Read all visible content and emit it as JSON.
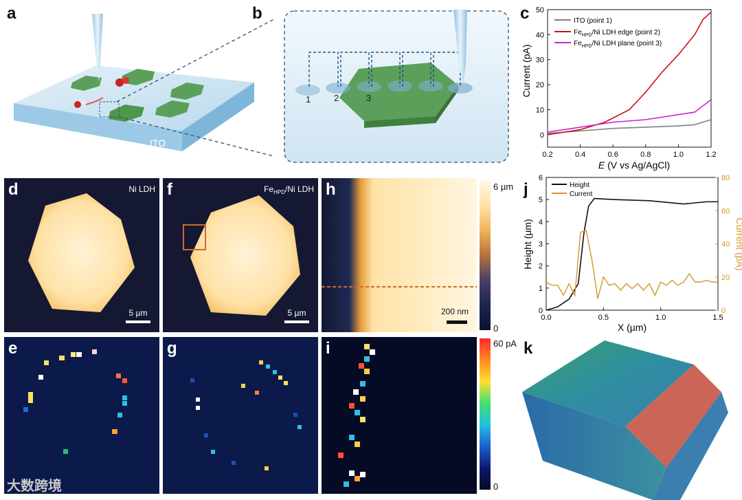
{
  "panels": {
    "a": "a",
    "b": "b",
    "c": "c",
    "d": "d",
    "e": "e",
    "f": "f",
    "g": "g",
    "h": "h",
    "i": "i",
    "j": "j",
    "k": "k"
  },
  "schematic_a": {
    "substrate_label": "ITO"
  },
  "schematic_b": {
    "points": [
      "1",
      "2",
      "3"
    ]
  },
  "afm_labels": {
    "d": "Ni LDH",
    "f_prefix": "Fe",
    "f_sub": "HPD",
    "f_suffix": "/Ni LDH"
  },
  "scale_bars": {
    "d": "5 µm",
    "f": "5 µm",
    "h": "200 nm"
  },
  "colorbar_height": {
    "top": "6 µm",
    "bottom": "0"
  },
  "colorbar_current": {
    "top": "60 pA",
    "bottom": "0"
  },
  "watermark": "大数跨境",
  "colors": {
    "ito": "#808080",
    "edge": "#cc1111",
    "plane": "#cc22cc",
    "height": "#111111",
    "current": "#d4962a",
    "hex": "#5aa05a"
  },
  "chart_data": [
    {
      "id": "c",
      "type": "line",
      "xlabel_italic": "E",
      "xlabel_rest": " (V vs Ag/AgCl)",
      "ylabel": "Current (pA)",
      "xlim": [
        0.2,
        1.2
      ],
      "ylim": [
        -5,
        50
      ],
      "xticks": [
        "0.2",
        "0.4",
        "0.6",
        "0.8",
        "1.0",
        "1.2"
      ],
      "yticks": [
        "0",
        "10",
        "20",
        "30",
        "40",
        "50"
      ],
      "legend": [
        {
          "prefix": "ITO (point 1)",
          "sub": "",
          "suffix": ""
        },
        {
          "prefix": "Fe",
          "sub": "HPD",
          "suffix": "/Ni LDH edge (point 2)"
        },
        {
          "prefix": "Fe",
          "sub": "HPD",
          "suffix": "/Ni LDH plane (point 3)"
        }
      ],
      "series": [
        {
          "name": "ITO (point 1)",
          "x": [
            0.2,
            0.4,
            0.6,
            0.8,
            1.0,
            1.1,
            1.2
          ],
          "y": [
            0.5,
            1.5,
            2.5,
            3,
            3.5,
            4,
            6
          ]
        },
        {
          "name": "FeHPD/Ni LDH edge (point 2)",
          "x": [
            0.2,
            0.4,
            0.55,
            0.7,
            0.8,
            0.9,
            1.0,
            1.1,
            1.15,
            1.2
          ],
          "y": [
            0,
            2,
            5,
            10,
            17,
            25,
            32,
            40,
            46,
            49
          ]
        },
        {
          "name": "FeHPD/Ni LDH plane (point 3)",
          "x": [
            0.2,
            0.4,
            0.6,
            0.8,
            1.0,
            1.1,
            1.2
          ],
          "y": [
            1,
            3,
            5,
            6,
            8,
            9,
            14
          ]
        }
      ]
    },
    {
      "id": "j",
      "type": "line",
      "xlabel": "X (µm)",
      "ylabel_left": "Height (µm)",
      "ylabel_right": "Current (pA)",
      "xlim": [
        0,
        1.5
      ],
      "ylim_left": [
        0,
        6
      ],
      "ylim_right": [
        0,
        80
      ],
      "xticks": [
        "0.0",
        "0.5",
        "1.0",
        "1.5"
      ],
      "yticks_left": [
        "0",
        "1",
        "2",
        "3",
        "4",
        "5",
        "6"
      ],
      "yticks_right": [
        "0",
        "20",
        "40",
        "60",
        "80"
      ],
      "legend": [
        "Height",
        "Current"
      ],
      "series": [
        {
          "name": "Height",
          "axis": "left",
          "x": [
            0,
            0.1,
            0.2,
            0.28,
            0.33,
            0.37,
            0.42,
            0.6,
            0.9,
            1.2,
            1.3,
            1.4,
            1.5
          ],
          "y": [
            0,
            0.15,
            0.5,
            1.2,
            3.5,
            4.7,
            5.05,
            5.0,
            4.95,
            4.8,
            4.85,
            4.9,
            4.9
          ]
        },
        {
          "name": "Current",
          "axis": "left_right",
          "x": [
            0,
            0.05,
            0.1,
            0.15,
            0.2,
            0.25,
            0.3,
            0.35,
            0.4,
            0.45,
            0.5,
            0.55,
            0.6,
            0.65,
            0.7,
            0.75,
            0.8,
            0.85,
            0.9,
            0.95,
            1.0,
            1.05,
            1.1,
            1.15,
            1.2,
            1.25,
            1.3,
            1.35,
            1.4,
            1.45,
            1.5
          ],
          "y": [
            17,
            15,
            15,
            9,
            16,
            9,
            47,
            48,
            30,
            7,
            20,
            15,
            16,
            12,
            16,
            13,
            16,
            12,
            16,
            9,
            17,
            15,
            18,
            15,
            17,
            22,
            17,
            17,
            18,
            17,
            17
          ]
        }
      ]
    }
  ]
}
